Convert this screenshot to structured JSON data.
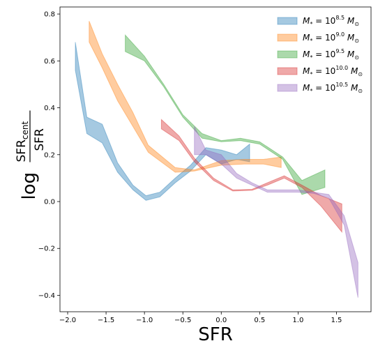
{
  "chart_data": {
    "type": "area",
    "title": "",
    "xlabel": "SFR",
    "ylabel": {
      "prefix": "log",
      "numerator": "SFR",
      "numerator_sub": "cent",
      "denominator": "SFR"
    },
    "xlim": [
      -2.1,
      1.95
    ],
    "ylim": [
      -0.47,
      0.83
    ],
    "xticks": [
      -2.0,
      -1.5,
      -1.0,
      -0.5,
      0.0,
      0.5,
      1.0,
      1.5
    ],
    "xtick_labels": [
      "−2.0",
      "−1.5",
      "−1.0",
      "−0.5",
      "0.0",
      "0.5",
      "1.0",
      "1.5"
    ],
    "yticks": [
      -0.4,
      -0.2,
      0.0,
      0.2,
      0.4,
      0.6,
      0.8
    ],
    "ytick_labels": [
      "−0.4",
      "−0.2",
      "0.0",
      "0.2",
      "0.4",
      "0.6",
      "0.8"
    ],
    "grid": false,
    "legend_position": "top-right",
    "series": [
      {
        "name": {
          "base": "M",
          "sub": "*",
          "exp": "8.5",
          "unit": "M",
          "unit_sub": "⊙"
        },
        "color": "#1f77b4",
        "x": [
          -1.9,
          -1.75,
          -1.55,
          -1.35,
          -1.15,
          -0.98,
          -0.8,
          -0.6,
          -0.4,
          -0.2,
          0.0,
          0.2,
          0.37
        ],
        "upper": [
          0.68,
          0.36,
          0.33,
          0.165,
          0.07,
          0.025,
          0.04,
          0.1,
          0.155,
          0.23,
          0.22,
          0.2,
          0.245
        ],
        "lower": [
          0.56,
          0.29,
          0.25,
          0.125,
          0.05,
          0.005,
          0.02,
          0.08,
          0.13,
          0.2,
          0.16,
          0.18,
          0.17
        ]
      },
      {
        "name": {
          "base": "M",
          "sub": "*",
          "exp": "9.0",
          "unit": "M",
          "unit_sub": "⊙"
        },
        "color": "#ff7f0e",
        "x": [
          -1.72,
          -1.55,
          -1.35,
          -1.15,
          -0.95,
          -0.6,
          -0.35,
          0.0,
          0.3,
          0.55,
          0.78
        ],
        "upper": [
          0.77,
          0.63,
          0.5,
          0.38,
          0.24,
          0.145,
          0.135,
          0.175,
          0.18,
          0.18,
          0.19
        ],
        "lower": [
          0.68,
          0.57,
          0.43,
          0.32,
          0.21,
          0.125,
          0.13,
          0.155,
          0.16,
          0.16,
          0.145
        ]
      },
      {
        "name": {
          "base": "M",
          "sub": "*",
          "exp": "9.5",
          "unit": "M",
          "unit_sub": "⊙"
        },
        "color": "#2ca02c",
        "x": [
          -1.25,
          -1.0,
          -0.75,
          -0.5,
          -0.25,
          0.0,
          0.25,
          0.5,
          0.8,
          1.05,
          1.35
        ],
        "upper": [
          0.71,
          0.62,
          0.5,
          0.37,
          0.29,
          0.26,
          0.27,
          0.255,
          0.19,
          0.09,
          0.135
        ],
        "lower": [
          0.64,
          0.6,
          0.49,
          0.36,
          0.27,
          0.255,
          0.26,
          0.245,
          0.18,
          0.03,
          0.06
        ]
      },
      {
        "name": {
          "base": "M",
          "sub": "*",
          "exp": "10.0",
          "unit": "M",
          "unit_sub": "⊙"
        },
        "color": "#d62728",
        "x": [
          -0.78,
          -0.55,
          -0.35,
          -0.1,
          0.15,
          0.4,
          0.6,
          0.82,
          1.05,
          1.3,
          1.57
        ],
        "upper": [
          0.35,
          0.28,
          0.185,
          0.1,
          0.05,
          0.052,
          0.08,
          0.11,
          0.07,
          0.025,
          -0.01
        ],
        "lower": [
          0.31,
          0.26,
          0.17,
          0.09,
          0.045,
          0.048,
          0.07,
          0.1,
          0.06,
          -0.02,
          -0.13
        ]
      },
      {
        "name": {
          "base": "M",
          "sub": "*",
          "exp": "10.5",
          "unit": "M",
          "unit_sub": "⊙"
        },
        "color": "#9467bd",
        "x": [
          -0.35,
          -0.2,
          0.0,
          0.2,
          0.4,
          0.6,
          0.8,
          1.0,
          1.2,
          1.4,
          1.6,
          1.78
        ],
        "upper": [
          0.32,
          0.22,
          0.2,
          0.12,
          0.08,
          0.05,
          0.05,
          0.05,
          0.04,
          0.03,
          -0.06,
          -0.26
        ],
        "lower": [
          0.2,
          0.2,
          0.16,
          0.1,
          0.07,
          0.04,
          0.04,
          0.04,
          0.035,
          0.015,
          -0.1,
          -0.41
        ]
      }
    ]
  }
}
